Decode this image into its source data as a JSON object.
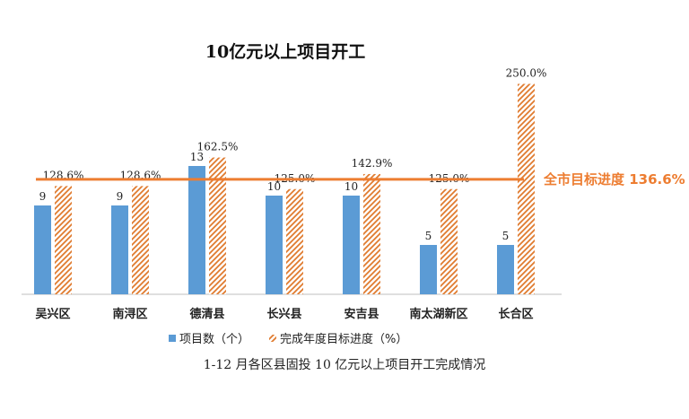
{
  "chart_data": {
    "type": "bar",
    "title": "10亿元以上项目开工",
    "categories": [
      "吴兴区",
      "南浔区",
      "德清县",
      "长兴县",
      "安吉县",
      "南太湖新区",
      "长合区"
    ],
    "series": [
      {
        "name": "项目数（个）",
        "values": [
          9,
          9,
          13,
          10,
          10,
          5,
          5
        ],
        "labels": [
          "9",
          "9",
          "13",
          "10",
          "10",
          "5",
          "5"
        ],
        "color": "#5b9bd5",
        "pattern": "solid"
      },
      {
        "name": "完成年度目标进度（%）",
        "values": [
          128.6,
          128.6,
          162.5,
          125.0,
          142.9,
          125.0,
          250.0
        ],
        "labels": [
          "128.6%",
          "128.6%",
          "162.5%",
          "125.0%",
          "142.9%",
          "125.0%",
          "250.0%"
        ],
        "color": "#ed7d31",
        "pattern": "diagonal-hatch"
      }
    ],
    "reference_line": {
      "label": "全市目标进度 136.6%",
      "value": 136.6,
      "color": "#ed7d31"
    },
    "legend_position": "bottom",
    "grid": false
  },
  "caption": "1-12 月各区县固投 10 亿元以上项目开工完成情况"
}
